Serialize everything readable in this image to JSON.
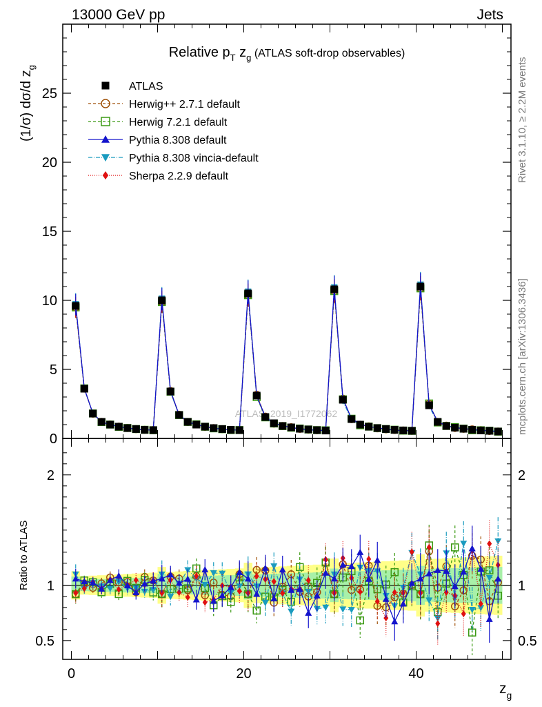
{
  "header": {
    "energy_label": "13000 GeV pp",
    "category_label": "Jets"
  },
  "side_labels": {
    "rivet": "Rivet 3.1.10, ≥ 2.2M events",
    "mcplots": "mcplots.cern.ch [arXiv:1306.3436]"
  },
  "watermark": "ATLAS_2019_I1772062",
  "chart_data": {
    "type": "line",
    "title": {
      "prefix": "Relative p",
      "sub1": "T",
      "mid": " z",
      "sub2": "g",
      "suffix": " (ATLAS soft-drop observables)"
    },
    "ylabel": {
      "main": "(1/σ) dσ/d z",
      "sub": "g"
    },
    "xlabel": {
      "main": "z",
      "sub": "g"
    },
    "ratio_ylabel": "Ratio to ATLAS",
    "xlim": [
      -1,
      51
    ],
    "ylim": [
      0,
      30
    ],
    "ratio_ylim": [
      0.33,
      2.33
    ],
    "x_ticks": [
      0,
      20,
      40
    ],
    "y_ticks": [
      0,
      5,
      10,
      15,
      20,
      25
    ],
    "ratio_ticks": [
      0.5,
      1,
      2
    ],
    "bins": {
      "blocks": 5,
      "bins_per_block": 10,
      "block_start_values": [
        [
          9.6,
          3.6,
          1.8,
          1.2,
          1.0,
          0.85,
          0.75,
          0.68,
          0.62,
          0.6
        ],
        [
          10.0,
          3.4,
          1.7,
          1.2,
          1.0,
          0.85,
          0.75,
          0.68,
          0.62,
          0.6
        ],
        [
          10.5,
          3.1,
          1.55,
          1.1,
          0.9,
          0.8,
          0.7,
          0.65,
          0.6,
          0.57
        ],
        [
          10.8,
          2.8,
          1.4,
          1.0,
          0.85,
          0.75,
          0.68,
          0.62,
          0.58,
          0.55
        ],
        [
          11.0,
          2.4,
          1.2,
          0.9,
          0.78,
          0.7,
          0.63,
          0.58,
          0.55,
          0.5
        ]
      ]
    },
    "series": [
      {
        "name": "ATLAS",
        "color": "#000000",
        "marker": "square-filled",
        "dash": "none"
      },
      {
        "name": "Herwig++ 2.7.1 default",
        "color": "#a0520a",
        "marker": "circle-open",
        "dash": "4,3",
        "peak_factor": 0.92,
        "amp": 0.18
      },
      {
        "name": "Herwig 7.2.1 default",
        "color": "#3c9a14",
        "marker": "square-open",
        "dash": "4,3",
        "peak_factor": 0.92,
        "amp": 0.22
      },
      {
        "name": "Pythia 8.308 default",
        "color": "#1414cc",
        "marker": "triangle-up",
        "dash": "none",
        "peak_factor": 1.06,
        "amp": 0.2
      },
      {
        "name": "Pythia 8.308 vincia-default",
        "color": "#1a9bbf",
        "marker": "triangle-down",
        "dash": "6,2,1,2",
        "peak_factor": 1.1,
        "amp": 0.2
      },
      {
        "name": "Sherpa 2.2.9 default",
        "color": "#e01010",
        "marker": "diamond",
        "dash": "1,2",
        "peak_factor": 0.93,
        "amp": 0.2
      }
    ]
  }
}
